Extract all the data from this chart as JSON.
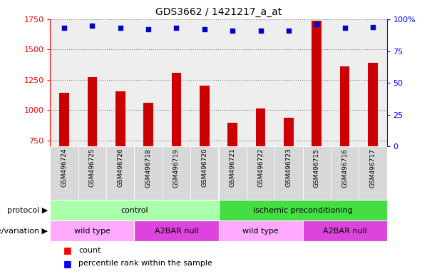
{
  "title": "GDS3662 / 1421217_a_at",
  "samples": [
    "GSM496724",
    "GSM496725",
    "GSM496726",
    "GSM496718",
    "GSM496719",
    "GSM496720",
    "GSM496721",
    "GSM496722",
    "GSM496723",
    "GSM496715",
    "GSM496716",
    "GSM496717"
  ],
  "counts": [
    1145,
    1275,
    1155,
    1060,
    1310,
    1205,
    895,
    1015,
    935,
    1735,
    1360,
    1390
  ],
  "percentile_ranks": [
    93,
    95,
    93,
    92,
    93,
    92,
    91,
    91,
    91,
    96,
    93,
    94
  ],
  "ylim_left": [
    700,
    1750
  ],
  "ylim_right": [
    0,
    100
  ],
  "yticks_left": [
    750,
    1000,
    1250,
    1500,
    1750
  ],
  "yticks_right": [
    0,
    25,
    50,
    75,
    100
  ],
  "bar_color": "#cc0000",
  "dot_color": "#0000cc",
  "bar_bottom": 700,
  "protocol_groups": [
    {
      "label": "control",
      "start": 0,
      "end": 6,
      "color": "#aaffaa"
    },
    {
      "label": "ischemic preconditioning",
      "start": 6,
      "end": 12,
      "color": "#44dd44"
    }
  ],
  "genotype_groups": [
    {
      "label": "wild type",
      "start": 0,
      "end": 3,
      "color": "#ffaaff"
    },
    {
      "label": "A2BAR null",
      "start": 3,
      "end": 6,
      "color": "#dd44dd"
    },
    {
      "label": "wild type",
      "start": 6,
      "end": 9,
      "color": "#ffaaff"
    },
    {
      "label": "A2BAR null",
      "start": 9,
      "end": 12,
      "color": "#dd44dd"
    }
  ],
  "protocol_label": "protocol",
  "genotype_label": "genotype/variation",
  "legend_count": "count",
  "legend_percentile": "percentile rank within the sample",
  "plot_bg_color": "#eeeeee"
}
